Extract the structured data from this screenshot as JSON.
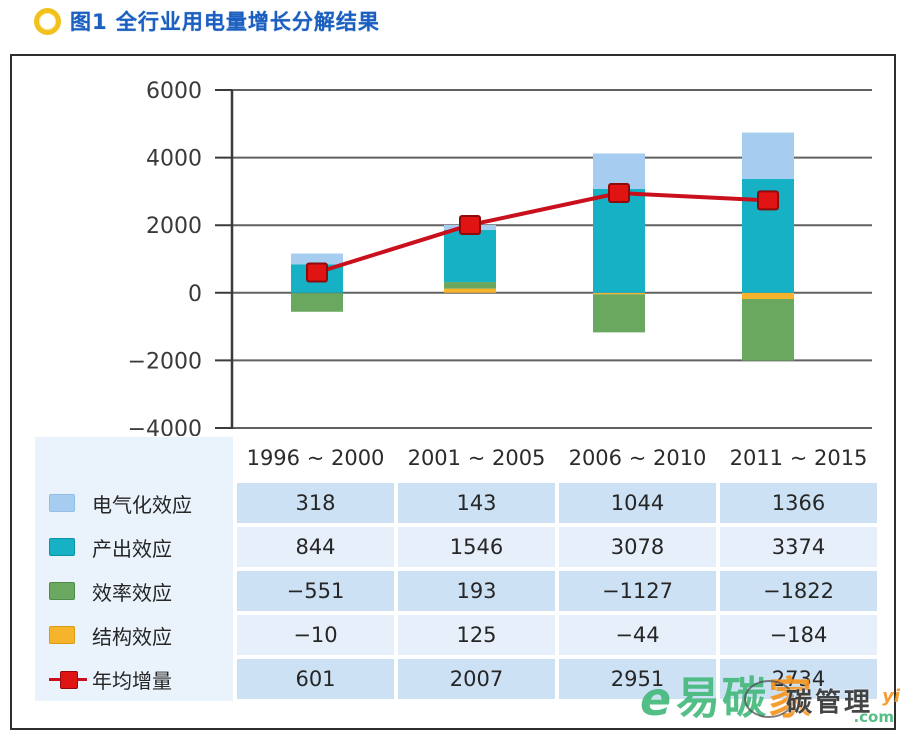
{
  "page": {
    "title": "图1 全行业用电量增长分解结果"
  },
  "chart_data": {
    "type": "bar",
    "subtype": "stacked-column-with-line",
    "title": "全行业用电量增长分解结果",
    "categories": [
      "1996 ~ 2000",
      "2001 ~ 2005",
      "2006 ~ 2010",
      "2011 ~ 2015"
    ],
    "series": [
      {
        "name": "电气化效应",
        "slug": "electrification-effect",
        "kind": "bar",
        "color": "#a6cdf0",
        "border": "#93bfe6",
        "values": [
          318,
          143,
          1044,
          1366
        ]
      },
      {
        "name": "产出效应",
        "slug": "output-effect",
        "kind": "bar",
        "color": "#16b1c5",
        "border": "#0d93a6",
        "values": [
          844,
          1546,
          3078,
          3374
        ]
      },
      {
        "name": "效率效应",
        "slug": "efficiency-effect",
        "kind": "bar",
        "color": "#6aa75f",
        "border": "#4f8c49",
        "values": [
          -551,
          193,
          -1127,
          -1822
        ]
      },
      {
        "name": "结构效应",
        "slug": "structure-effect",
        "kind": "bar",
        "color": "#f5b42b",
        "border": "#d99a14",
        "values": [
          -10,
          125,
          -44,
          -184
        ]
      },
      {
        "name": "年均增量",
        "slug": "annual-average-increment",
        "kind": "line",
        "color": "#c9101c",
        "marker_fill": "#e11414",
        "marker_border": "#8f0a0a",
        "values": [
          601,
          2007,
          2951,
          2734
        ]
      }
    ],
    "stack_order_bottom_up": [
      3,
      2,
      1,
      0
    ],
    "ylim": [
      -4000,
      6000
    ],
    "yticks": [
      6000,
      4000,
      2000,
      0,
      -2000,
      -4000
    ],
    "grid": true,
    "grid_color": "#616161",
    "axis_color": "#3a3a3a",
    "legend_position": "table-rows-left",
    "table_row_bg_odd": "#cde1f5",
    "table_row_bg_even": "#e6effa",
    "table_label_bg": "#eaf2fb"
  },
  "watermark": {
    "logo": "e",
    "brand_green": "易碳",
    "brand_orange": "家",
    "overlay": "碳管理",
    "fragment": "yi",
    "suffix": ".com",
    "green": "#45b97c",
    "orange": "#f7941d"
  }
}
